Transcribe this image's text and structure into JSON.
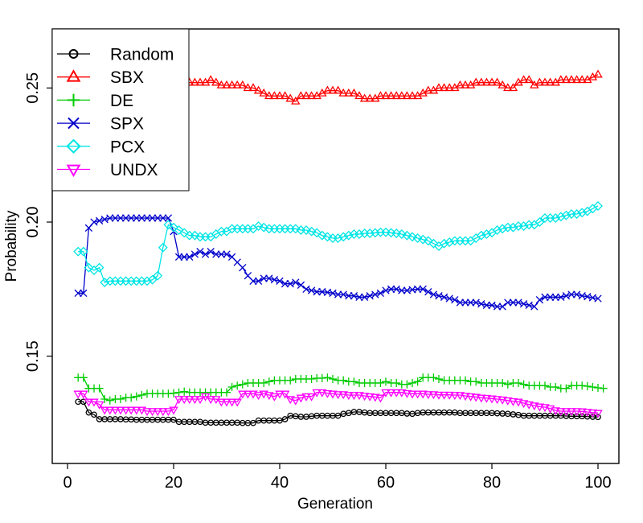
{
  "chart_data": {
    "type": "line",
    "title": "",
    "xlabel": "Generation",
    "ylabel": "Probability",
    "xlim": [
      0,
      100
    ],
    "ylim": [
      0.11,
      0.272
    ],
    "xticks": [
      0,
      20,
      40,
      60,
      80,
      100
    ],
    "yticks": [
      0.15,
      0.2,
      0.25
    ],
    "ytick_labels": [
      "0.15",
      "0.20",
      "0.25"
    ],
    "grid": false,
    "legend_position": "top-left",
    "x_start": 2,
    "series": [
      {
        "name": "Random",
        "color": "#000000",
        "marker": "circle",
        "values": [
          0.133,
          0.133,
          0.129,
          0.1282,
          0.1265,
          0.1265,
          0.1265,
          0.1265,
          0.1265,
          0.1264,
          0.1264,
          0.1263,
          0.1263,
          0.1263,
          0.1263,
          0.1263,
          0.1263,
          0.1263,
          0.1263,
          0.1255,
          0.1255,
          0.1255,
          0.1255,
          0.1255,
          0.1252,
          0.1252,
          0.1252,
          0.1252,
          0.1252,
          0.1252,
          0.1252,
          0.1251,
          0.1251,
          0.1251,
          0.126,
          0.126,
          0.126,
          0.126,
          0.126,
          0.1265,
          0.1278,
          0.1276,
          0.1274,
          0.1274,
          0.1276,
          0.1278,
          0.1278,
          0.1278,
          0.1278,
          0.1278,
          0.1285,
          0.1288,
          0.1292,
          0.1292,
          0.129,
          0.1288,
          0.1288,
          0.1288,
          0.1288,
          0.1288,
          0.1288,
          0.1288,
          0.1286,
          0.1285,
          0.1288,
          0.129,
          0.129,
          0.129,
          0.129,
          0.129,
          0.129,
          0.129,
          0.1288,
          0.1288,
          0.1288,
          0.1288,
          0.1288,
          0.1288,
          0.1288,
          0.1287,
          0.1286,
          0.1285,
          0.1283,
          0.1281,
          0.1278,
          0.1278,
          0.1278,
          0.1278,
          0.1278,
          0.1278,
          0.1278,
          0.1278,
          0.1277,
          0.1276,
          0.1276,
          0.1276,
          0.1275,
          0.1274,
          0.1273
        ]
      },
      {
        "name": "SBX",
        "color": "#ff0000",
        "marker": "triangle-up",
        "values": [
          0.258,
          0.257,
          0.256,
          0.255,
          0.255,
          0.254,
          0.252,
          0.25,
          0.249,
          0.25,
          0.251,
          0.251,
          0.251,
          0.251,
          0.251,
          0.251,
          0.251,
          0.252,
          0.252,
          0.253,
          0.252,
          0.252,
          0.252,
          0.252,
          0.252,
          0.253,
          0.252,
          0.251,
          0.251,
          0.251,
          0.251,
          0.251,
          0.25,
          0.25,
          0.249,
          0.248,
          0.247,
          0.247,
          0.247,
          0.247,
          0.246,
          0.245,
          0.247,
          0.247,
          0.247,
          0.247,
          0.248,
          0.249,
          0.249,
          0.249,
          0.248,
          0.248,
          0.248,
          0.247,
          0.246,
          0.246,
          0.246,
          0.247,
          0.247,
          0.247,
          0.247,
          0.247,
          0.247,
          0.247,
          0.247,
          0.248,
          0.249,
          0.249,
          0.25,
          0.25,
          0.25,
          0.25,
          0.251,
          0.251,
          0.251,
          0.252,
          0.252,
          0.252,
          0.252,
          0.252,
          0.251,
          0.25,
          0.25,
          0.252,
          0.253,
          0.253,
          0.251,
          0.252,
          0.252,
          0.252,
          0.252,
          0.253,
          0.253,
          0.253,
          0.253,
          0.253,
          0.253,
          0.254,
          0.255
        ]
      },
      {
        "name": "DE",
        "color": "#00cc00",
        "marker": "plus",
        "values": [
          0.142,
          0.142,
          0.138,
          0.138,
          0.138,
          0.134,
          0.1335,
          0.134,
          0.134,
          0.1345,
          0.1345,
          0.135,
          0.1355,
          0.136,
          0.136,
          0.136,
          0.136,
          0.136,
          0.1362,
          0.1365,
          0.1368,
          0.1365,
          0.1365,
          0.1365,
          0.1365,
          0.1365,
          0.1365,
          0.1365,
          0.1365,
          0.1385,
          0.139,
          0.1395,
          0.14,
          0.14,
          0.14,
          0.14,
          0.1405,
          0.141,
          0.141,
          0.141,
          0.141,
          0.1415,
          0.1415,
          0.1415,
          0.1415,
          0.1418,
          0.1418,
          0.142,
          0.1415,
          0.141,
          0.141,
          0.1405,
          0.1405,
          0.14,
          0.14,
          0.14,
          0.14,
          0.14,
          0.1405,
          0.14,
          0.14,
          0.1395,
          0.1395,
          0.14,
          0.1405,
          0.142,
          0.142,
          0.142,
          0.1415,
          0.141,
          0.141,
          0.141,
          0.141,
          0.141,
          0.1405,
          0.1405,
          0.14,
          0.14,
          0.14,
          0.14,
          0.14,
          0.1395,
          0.14,
          0.14,
          0.1395,
          0.139,
          0.139,
          0.139,
          0.139,
          0.1385,
          0.1385,
          0.138,
          0.138,
          0.139,
          0.139,
          0.139,
          0.1388,
          0.1385,
          0.1382,
          0.138
        ]
      },
      {
        "name": "SPX",
        "color": "#0000cc",
        "marker": "x",
        "values": [
          0.1735,
          0.1735,
          0.1978,
          0.2,
          0.2005,
          0.201,
          0.2015,
          0.2015,
          0.2015,
          0.2015,
          0.2015,
          0.2015,
          0.2015,
          0.2015,
          0.2015,
          0.2015,
          0.2015,
          0.2015,
          0.1965,
          0.187,
          0.187,
          0.187,
          0.188,
          0.189,
          0.188,
          0.189,
          0.188,
          0.188,
          0.188,
          0.187,
          0.185,
          0.183,
          0.18,
          0.178,
          0.178,
          0.179,
          0.179,
          0.1785,
          0.178,
          0.177,
          0.177,
          0.1775,
          0.1765,
          0.175,
          0.1745,
          0.174,
          0.174,
          0.1738,
          0.1735,
          0.173,
          0.173,
          0.1725,
          0.1725,
          0.172,
          0.172,
          0.1725,
          0.173,
          0.1735,
          0.1745,
          0.175,
          0.175,
          0.1745,
          0.1745,
          0.1748,
          0.175,
          0.175,
          0.174,
          0.173,
          0.1725,
          0.172,
          0.1715,
          0.171,
          0.17,
          0.17,
          0.17,
          0.17,
          0.1695,
          0.169,
          0.169,
          0.1685,
          0.1685,
          0.17,
          0.17,
          0.17,
          0.1695,
          0.169,
          0.1685,
          0.171,
          0.172,
          0.172,
          0.172,
          0.172,
          0.1725,
          0.173,
          0.173,
          0.1725,
          0.1722,
          0.1718,
          0.1715
        ]
      },
      {
        "name": "PCX",
        "color": "#00e5e5",
        "marker": "diamond",
        "values": [
          0.189,
          0.189,
          0.183,
          0.182,
          0.183,
          0.1775,
          0.178,
          0.178,
          0.178,
          0.178,
          0.178,
          0.178,
          0.178,
          0.178,
          0.1785,
          0.18,
          0.1905,
          0.199,
          0.198,
          0.197,
          0.196,
          0.195,
          0.195,
          0.1945,
          0.1945,
          0.1945,
          0.1955,
          0.1965,
          0.1965,
          0.1975,
          0.1975,
          0.1975,
          0.1975,
          0.1975,
          0.1985,
          0.198,
          0.1975,
          0.1975,
          0.1975,
          0.1975,
          0.1975,
          0.1975,
          0.197,
          0.197,
          0.1965,
          0.196,
          0.195,
          0.1945,
          0.194,
          0.194,
          0.1945,
          0.195,
          0.1955,
          0.1955,
          0.1958,
          0.1958,
          0.196,
          0.1962,
          0.1962,
          0.196,
          0.1958,
          0.1955,
          0.195,
          0.1945,
          0.194,
          0.1935,
          0.193,
          0.192,
          0.191,
          0.192,
          0.1925,
          0.193,
          0.193,
          0.193,
          0.193,
          0.194,
          0.195,
          0.1955,
          0.196,
          0.197,
          0.1975,
          0.198,
          0.198,
          0.1985,
          0.1985,
          0.199,
          0.199,
          0.2,
          0.2015,
          0.2015,
          0.2015,
          0.202,
          0.2025,
          0.203,
          0.203,
          0.2035,
          0.204,
          0.205,
          0.206
        ]
      },
      {
        "name": "UNDX",
        "color": "#ff00ff",
        "marker": "triangle-down",
        "values": [
          0.136,
          0.136,
          0.133,
          0.133,
          0.132,
          0.13,
          0.13,
          0.13,
          0.13,
          0.13,
          0.13,
          0.13,
          0.13,
          0.1295,
          0.1295,
          0.1295,
          0.1295,
          0.1295,
          0.13,
          0.134,
          0.134,
          0.134,
          0.134,
          0.134,
          0.135,
          0.134,
          0.134,
          0.133,
          0.133,
          0.133,
          0.133,
          0.136,
          0.136,
          0.136,
          0.1355,
          0.136,
          0.1355,
          0.135,
          0.136,
          0.136,
          0.134,
          0.1335,
          0.1345,
          0.135,
          0.135,
          0.1365,
          0.1365,
          0.1362,
          0.136,
          0.1358,
          0.1358,
          0.1355,
          0.1355,
          0.1355,
          0.1352,
          0.135,
          0.1348,
          0.1345,
          0.1365,
          0.1365,
          0.1365,
          0.1365,
          0.1362,
          0.136,
          0.136,
          0.136,
          0.1358,
          0.1358,
          0.1356,
          0.1356,
          0.1356,
          0.1355,
          0.1355,
          0.1352,
          0.135,
          0.1348,
          0.1345,
          0.1344,
          0.1342,
          0.134,
          0.1338,
          0.1335,
          0.1332,
          0.133,
          0.1325,
          0.132,
          0.1316,
          0.1312,
          0.131,
          0.1305,
          0.1298,
          0.1295,
          0.1295,
          0.1295,
          0.1295,
          0.1294,
          0.1292,
          0.129,
          0.1288
        ]
      }
    ]
  }
}
